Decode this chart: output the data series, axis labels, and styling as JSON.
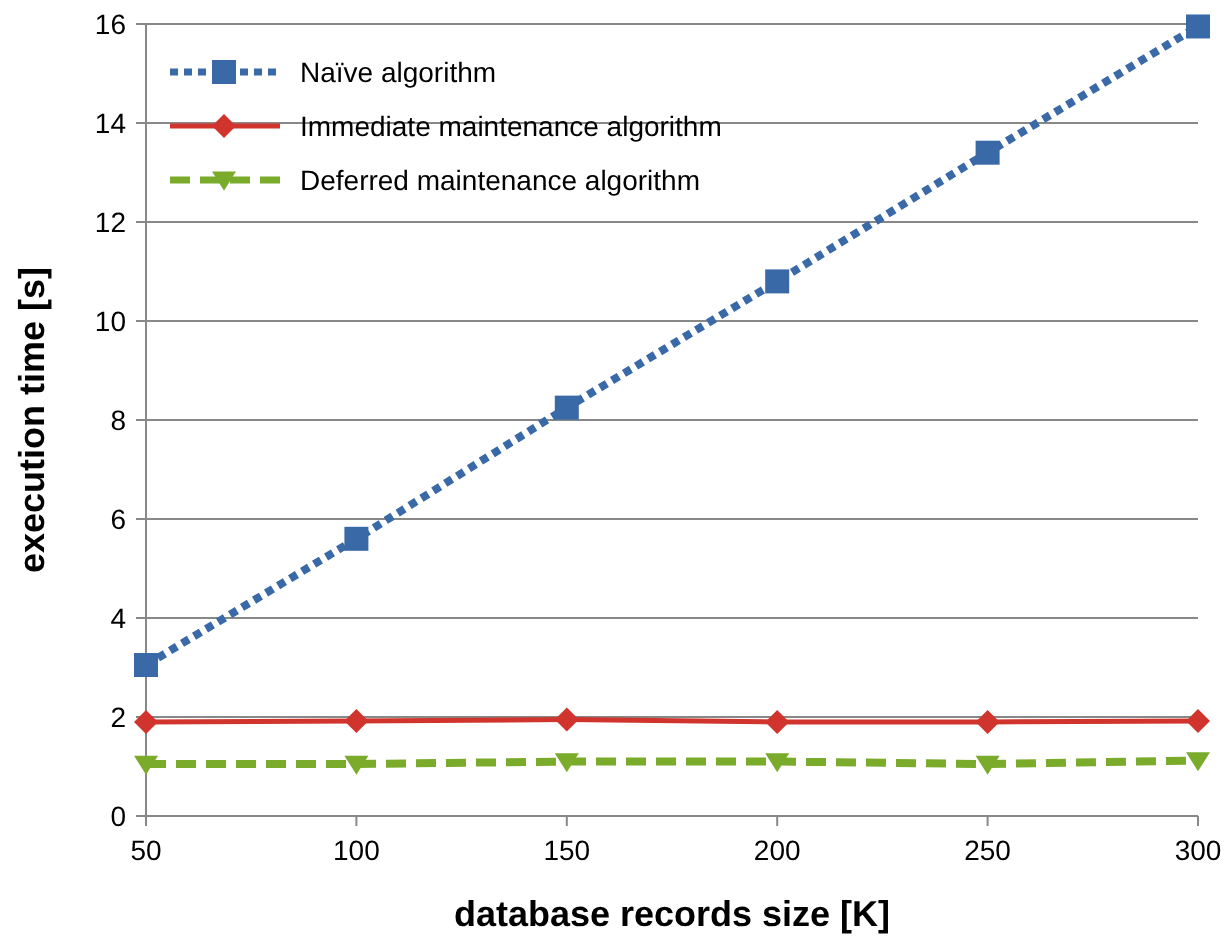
{
  "chart_data": {
    "type": "line",
    "xlabel": "database records size [K]",
    "ylabel": "execution time [s]",
    "x": [
      50,
      100,
      150,
      200,
      250,
      300
    ],
    "xlim": [
      50,
      300
    ],
    "xticks": [
      50,
      100,
      150,
      200,
      250,
      300
    ],
    "ylim": [
      0,
      16
    ],
    "yticks": [
      0,
      2,
      4,
      6,
      8,
      10,
      12,
      14,
      16
    ],
    "grid": "y",
    "legend": "top left",
    "series": [
      {
        "name": "Naïve algorithm",
        "color": "#3a69a8",
        "values": [
          3.05,
          5.6,
          8.25,
          10.8,
          13.4,
          15.95
        ],
        "marker": "square",
        "line_style": "dotted"
      },
      {
        "name": "Immediate maintenance algorithm",
        "color": "#d0342c",
        "values": [
          1.9,
          1.92,
          1.95,
          1.9,
          1.9,
          1.92
        ],
        "marker": "diamond",
        "line_style": "solid"
      },
      {
        "name": "Deferred maintenance algorithm",
        "color": "#7aab2b",
        "values": [
          1.05,
          1.05,
          1.1,
          1.1,
          1.05,
          1.12
        ],
        "marker": "triangle-down",
        "line_style": "dashed"
      }
    ]
  }
}
